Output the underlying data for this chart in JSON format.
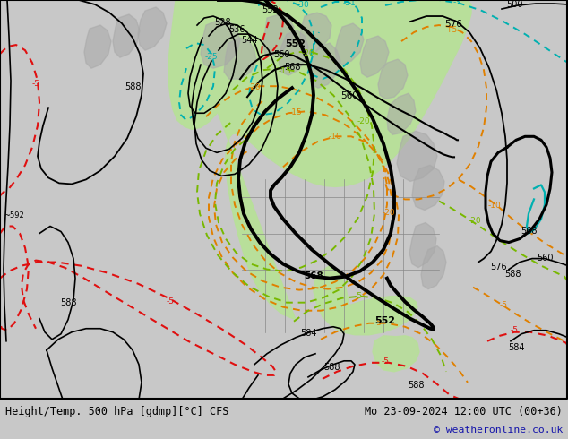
{
  "title_left": "Height/Temp. 500 hPa [gdmp][°C] CFS",
  "title_right": "Mo 23-09-2024 12:00 UTC (00+36)",
  "copyright": "© weatheronline.co.uk",
  "bg_map": "#c8c8c8",
  "bg_footer": "#e0e0e0",
  "land_green": "#b8df9a",
  "land_gray": "#a8a8a8",
  "c_black": "#000000",
  "c_orange": "#e08000",
  "c_red": "#e01010",
  "c_cyan": "#00b0b0",
  "c_green": "#78b800",
  "c_blue": "#1414aa"
}
